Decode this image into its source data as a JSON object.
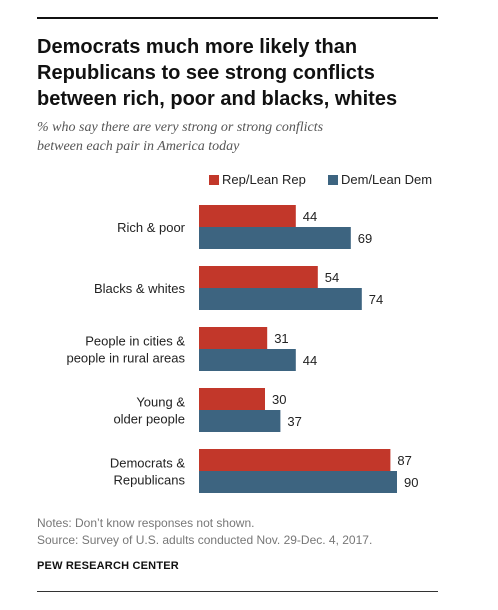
{
  "header": {
    "title_lines": [
      "Democrats much more likely than",
      "Republicans to see strong conflicts",
      "between rich, poor and blacks, whites"
    ],
    "subtitle_lines": [
      "% who say there are very strong or strong conflicts",
      "between each pair in America today"
    ]
  },
  "chart_data": {
    "type": "bar",
    "orientation": "horizontal",
    "categories": [
      [
        "Rich & poor"
      ],
      [
        "Blacks & whites"
      ],
      [
        "People in cities &",
        "people in rural areas"
      ],
      [
        "Young &",
        "older people"
      ],
      [
        "Democrats &",
        "Republicans"
      ]
    ],
    "series": [
      {
        "name": "Rep/Lean Rep",
        "color": "#c2372a",
        "values": [
          44,
          54,
          31,
          30,
          87
        ]
      },
      {
        "name": "Dem/Lean Dem",
        "color": "#3d6480",
        "values": [
          69,
          74,
          44,
          37,
          90
        ]
      }
    ],
    "xlim": [
      0,
      100
    ],
    "grid": false,
    "legend_position": "top"
  },
  "footer": {
    "notes": [
      "Notes: Don’t know responses not shown.",
      "Source: Survey of U.S. adults conducted Nov. 29-Dec. 4, 2017."
    ],
    "credit": "PEW RESEARCH CENTER"
  }
}
